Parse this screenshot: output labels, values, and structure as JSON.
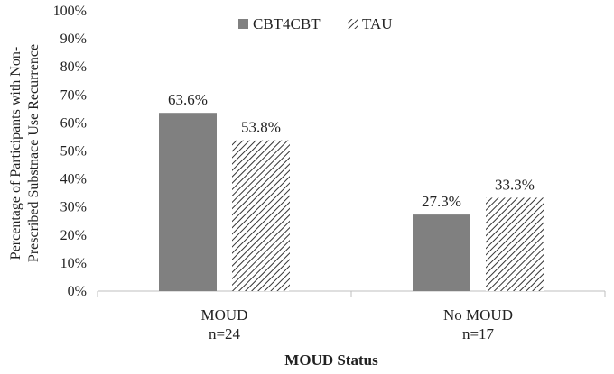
{
  "chart_data": {
    "type": "bar",
    "categories": [
      {
        "label": "MOUD",
        "sub": "n=24"
      },
      {
        "label": "No MOUD",
        "sub": "n=17"
      }
    ],
    "series": [
      {
        "name": "CBT4CBT",
        "values": [
          63.6,
          27.3
        ],
        "labels": [
          "63.6%",
          "27.3%"
        ],
        "fill": "#808080",
        "pattern": "solid"
      },
      {
        "name": "TAU",
        "values": [
          53.8,
          33.3
        ],
        "labels": [
          "53.8%",
          "33.3%"
        ],
        "fill": "#404040",
        "pattern": "diagonal-hatch"
      }
    ],
    "ylabel_lines": [
      "Percentage of Participants with Non-",
      "Prescribed Substnace Use Recurrence"
    ],
    "xlabel": "MOUD Status",
    "ylim": [
      0,
      100
    ],
    "yticks": [
      "0%",
      "10%",
      "20%",
      "30%",
      "40%",
      "50%",
      "60%",
      "70%",
      "80%",
      "90%",
      "100%"
    ],
    "grid": false,
    "legend_position": "top-left"
  }
}
